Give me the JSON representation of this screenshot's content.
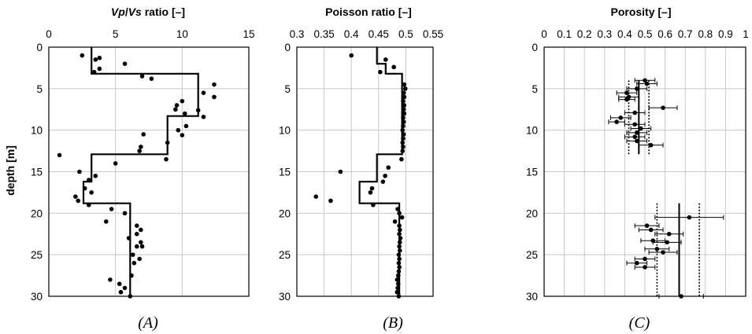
{
  "chart_data": [
    {
      "type": "scatter",
      "panel_label": "(A)",
      "title_parts": [
        {
          "text": "Vp",
          "italic": true
        },
        {
          "text": "/",
          "italic": false
        },
        {
          "text": "Vs",
          "italic": true
        },
        {
          "text": " ratio [–]",
          "italic": false
        }
      ],
      "ylabel": "depth [m]",
      "xlim": [
        0,
        15
      ],
      "ylim": [
        0,
        30
      ],
      "x_ticks": [
        0,
        5,
        10,
        15
      ],
      "y_ticks": [
        0,
        5,
        10,
        15,
        20,
        25,
        30
      ],
      "grid": true,
      "points": [
        [
          2.5,
          1.0
        ],
        [
          3.5,
          1.5
        ],
        [
          3.8,
          1.3
        ],
        [
          5.7,
          2.0
        ],
        [
          3.4,
          3.0
        ],
        [
          3.8,
          2.6
        ],
        [
          7.0,
          3.5
        ],
        [
          7.7,
          3.8
        ],
        [
          12.4,
          4.5
        ],
        [
          11.6,
          5.5
        ],
        [
          12.4,
          6.0
        ],
        [
          10.0,
          6.5
        ],
        [
          9.6,
          7.0
        ],
        [
          9.5,
          7.5
        ],
        [
          11.2,
          7.6
        ],
        [
          10.2,
          8.0
        ],
        [
          11.6,
          8.4
        ],
        [
          10.3,
          9.5
        ],
        [
          9.7,
          10.0
        ],
        [
          7.1,
          10.5
        ],
        [
          10.0,
          10.6
        ],
        [
          8.9,
          11.5
        ],
        [
          6.9,
          12.0
        ],
        [
          6.8,
          12.5
        ],
        [
          0.8,
          13.0
        ],
        [
          8.8,
          13.5
        ],
        [
          5.0,
          14.0
        ],
        [
          2.3,
          15.0
        ],
        [
          3.5,
          15.5
        ],
        [
          3.0,
          16.0
        ],
        [
          2.7,
          17.0
        ],
        [
          3.2,
          17.5
        ],
        [
          2.0,
          18.0
        ],
        [
          2.2,
          18.5
        ],
        [
          3.0,
          19.0
        ],
        [
          4.7,
          19.5
        ],
        [
          5.7,
          20.0
        ],
        [
          4.3,
          21.0
        ],
        [
          6.6,
          21.5
        ],
        [
          6.9,
          22.0
        ],
        [
          6.6,
          22.5
        ],
        [
          6.0,
          23.0
        ],
        [
          6.9,
          23.5
        ],
        [
          6.6,
          24.0
        ],
        [
          7.0,
          24.0
        ],
        [
          6.3,
          25.0
        ],
        [
          6.8,
          25.5
        ],
        [
          6.4,
          26.0
        ],
        [
          6.2,
          27.5
        ],
        [
          4.6,
          28.0
        ],
        [
          5.3,
          28.5
        ],
        [
          5.7,
          29.0
        ],
        [
          5.4,
          29.5
        ],
        [
          6.1,
          30.0
        ]
      ],
      "step_profile": [
        [
          3.2,
          0.0
        ],
        [
          3.2,
          3.2
        ],
        [
          11.2,
          3.2
        ],
        [
          11.2,
          8.3
        ],
        [
          8.9,
          8.3
        ],
        [
          8.9,
          12.9
        ],
        [
          3.2,
          12.9
        ],
        [
          3.2,
          16.2
        ],
        [
          2.6,
          16.2
        ],
        [
          2.6,
          18.8
        ],
        [
          6.1,
          18.8
        ],
        [
          6.1,
          30.5
        ]
      ]
    },
    {
      "type": "scatter",
      "panel_label": "(B)",
      "title": "Poisson ratio [–]",
      "xlim": [
        0.3,
        0.55
      ],
      "ylim": [
        0,
        30
      ],
      "x_ticks": [
        0.3,
        0.35,
        0.4,
        0.45,
        0.5,
        0.55
      ],
      "y_ticks": [
        0,
        5,
        10,
        15,
        20,
        25,
        30
      ],
      "grid": true,
      "points": [
        [
          0.4,
          1.0
        ],
        [
          0.463,
          1.5
        ],
        [
          0.478,
          2.4
        ],
        [
          0.453,
          3.0
        ],
        [
          0.497,
          4.5
        ],
        [
          0.499,
          5.0
        ],
        [
          0.496,
          5.5
        ],
        [
          0.497,
          6.0
        ],
        [
          0.495,
          6.5
        ],
        [
          0.497,
          7.0
        ],
        [
          0.496,
          7.5
        ],
        [
          0.497,
          8.0
        ],
        [
          0.495,
          8.5
        ],
        [
          0.496,
          9.0
        ],
        [
          0.495,
          9.5
        ],
        [
          0.494,
          10.0
        ],
        [
          0.496,
          10.5
        ],
        [
          0.495,
          11.0
        ],
        [
          0.494,
          11.5
        ],
        [
          0.495,
          12.0
        ],
        [
          0.494,
          12.5
        ],
        [
          0.492,
          13.5
        ],
        [
          0.468,
          14.5
        ],
        [
          0.38,
          15.0
        ],
        [
          0.462,
          15.5
        ],
        [
          0.458,
          16.2
        ],
        [
          0.438,
          17.0
        ],
        [
          0.435,
          17.5
        ],
        [
          0.335,
          18.0
        ],
        [
          0.362,
          18.5
        ],
        [
          0.44,
          19.0
        ],
        [
          0.485,
          19.5
        ],
        [
          0.488,
          20.0
        ],
        [
          0.493,
          20.5
        ],
        [
          0.48,
          21.0
        ],
        [
          0.488,
          21.5
        ],
        [
          0.489,
          22.0
        ],
        [
          0.488,
          22.5
        ],
        [
          0.49,
          23.0
        ],
        [
          0.489,
          23.5
        ],
        [
          0.488,
          24.0
        ],
        [
          0.489,
          24.5
        ],
        [
          0.487,
          25.0
        ],
        [
          0.488,
          25.5
        ],
        [
          0.487,
          26.0
        ],
        [
          0.488,
          26.5
        ],
        [
          0.487,
          27.0
        ],
        [
          0.486,
          27.5
        ],
        [
          0.484,
          28.0
        ],
        [
          0.486,
          28.5
        ],
        [
          0.485,
          29.0
        ],
        [
          0.484,
          29.5
        ],
        [
          0.487,
          30.0
        ]
      ],
      "step_profile": [
        [
          0.447,
          0.0
        ],
        [
          0.447,
          2.0
        ],
        [
          0.463,
          2.0
        ],
        [
          0.463,
          3.2
        ],
        [
          0.493,
          3.2
        ],
        [
          0.493,
          12.9
        ],
        [
          0.447,
          12.9
        ],
        [
          0.447,
          16.2
        ],
        [
          0.415,
          16.2
        ],
        [
          0.415,
          18.8
        ],
        [
          0.488,
          18.8
        ],
        [
          0.488,
          30.5
        ]
      ]
    },
    {
      "type": "scatter",
      "panel_label": "(C)",
      "title": "Porosity [–]",
      "xlim": [
        0,
        1
      ],
      "ylim": [
        0,
        30
      ],
      "x_ticks": [
        0,
        0.1,
        0.2,
        0.3,
        0.4,
        0.5,
        0.6,
        0.7,
        0.8,
        0.9,
        1
      ],
      "y_ticks": [
        0,
        5,
        10,
        15,
        20,
        25,
        30
      ],
      "grid": true,
      "points": [
        [
          0.5,
          4.0,
          0.05
        ],
        [
          0.51,
          4.4,
          0.05
        ],
        [
          0.46,
          5.0,
          0.05
        ],
        [
          0.41,
          5.5,
          0.05
        ],
        [
          0.42,
          6.0,
          0.05
        ],
        [
          0.41,
          6.3,
          0.04
        ],
        [
          0.59,
          7.3,
          0.07
        ],
        [
          0.45,
          7.9,
          0.05
        ],
        [
          0.38,
          8.5,
          0.05
        ],
        [
          0.36,
          9.0,
          0.04
        ],
        [
          0.45,
          9.3,
          0.05
        ],
        [
          0.48,
          9.8,
          0.05
        ],
        [
          0.46,
          10.3,
          0.05
        ],
        [
          0.45,
          10.8,
          0.05
        ],
        [
          0.46,
          11.3,
          0.05
        ],
        [
          0.53,
          11.8,
          0.06
        ],
        [
          0.72,
          20.5,
          0.17
        ],
        [
          0.51,
          21.5,
          0.06
        ],
        [
          0.53,
          22.0,
          0.06
        ],
        [
          0.62,
          22.5,
          0.07
        ],
        [
          0.54,
          23.3,
          0.06
        ],
        [
          0.61,
          23.5,
          0.07
        ],
        [
          0.56,
          24.3,
          0.06
        ],
        [
          0.59,
          24.7,
          0.07
        ],
        [
          0.5,
          25.5,
          0.05
        ],
        [
          0.46,
          26.0,
          0.05
        ],
        [
          0.5,
          26.5,
          0.05
        ],
        [
          0.68,
          30.0,
          0.11
        ]
      ],
      "mean_profile": [
        [
          [
            0.47,
            4.0
          ],
          [
            0.47,
            12.9
          ]
        ],
        [
          [
            0.67,
            18.8
          ],
          [
            0.67,
            30.5
          ]
        ]
      ],
      "lower_bound": [
        [
          [
            0.42,
            4.0
          ],
          [
            0.42,
            12.9
          ]
        ],
        [
          [
            0.56,
            18.8
          ],
          [
            0.56,
            30.5
          ]
        ]
      ],
      "upper_bound": [
        [
          [
            0.52,
            4.0
          ],
          [
            0.52,
            12.9
          ]
        ],
        [
          [
            0.77,
            18.8
          ],
          [
            0.77,
            30.5
          ]
        ]
      ]
    }
  ]
}
